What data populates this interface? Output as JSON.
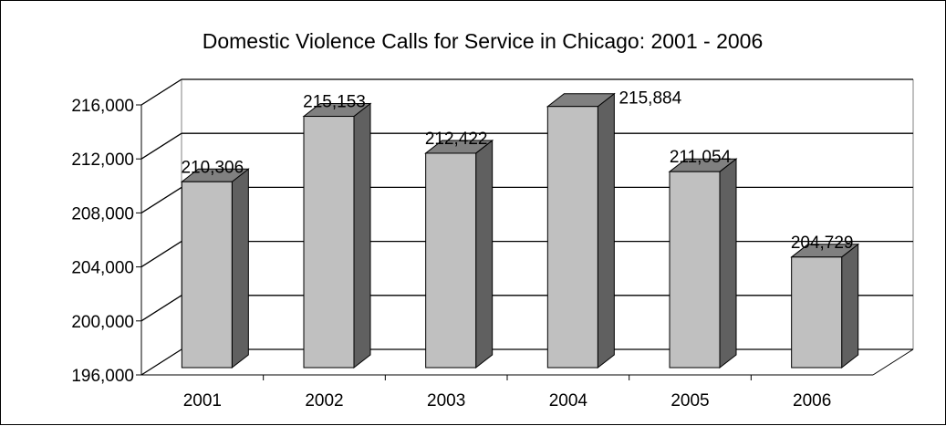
{
  "chart_data": {
    "type": "bar",
    "title": "Domestic Violence Calls for Service in Chicago: 2001 - 2006",
    "categories": [
      "2001",
      "2002",
      "2003",
      "2004",
      "2005",
      "2006"
    ],
    "values": [
      210306,
      215153,
      212422,
      215884,
      211054,
      204729
    ],
    "data_labels": [
      "210,306",
      "215,153",
      "212,422",
      "215,884",
      "211,054",
      "204,729"
    ],
    "y_ticks": [
      196000,
      200000,
      204000,
      208000,
      212000,
      216000
    ],
    "y_tick_labels": [
      "196,000",
      "200,000",
      "204,000",
      "208,000",
      "212,000",
      "216,000"
    ],
    "ylim": [
      196000,
      216000
    ],
    "xlabel": "",
    "ylabel": "",
    "grid": true,
    "legend": "none",
    "style": "3d-column",
    "colors": {
      "bar_front": "#c0c0c0",
      "bar_side": "#606060",
      "bar_top": "#808080",
      "gridline": "#000000",
      "background": "#ffffff"
    }
  }
}
